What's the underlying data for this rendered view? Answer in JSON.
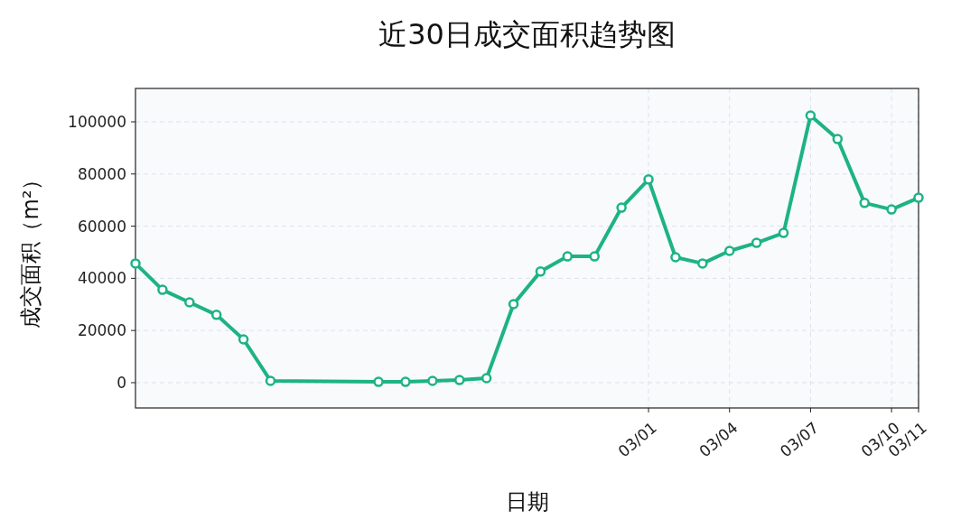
{
  "chart_data": {
    "type": "line",
    "title": "近30日成交面积趋势图",
    "xlabel": "日期",
    "ylabel": "成交面积（m²）",
    "x": [
      "--02-10",
      "--02-11",
      "--02-12",
      "--02-13",
      "--02-14",
      "--02-15",
      "--02-19",
      "--02-20",
      "--02-21",
      "--02-22",
      "--02-23",
      "--02-24",
      "--02-25",
      "--02-26",
      "--02-27",
      "--02-28",
      "--03-01",
      "--03-02",
      "--03-03",
      "--03-04",
      "--03-05",
      "--03-06",
      "--03-07",
      "--03-08",
      "--03-09",
      "--03-10",
      "--03-11"
    ],
    "series": [
      {
        "color": "#1db383",
        "values": [
          45700,
          35600,
          30800,
          26000,
          16600,
          700,
          300,
          300,
          700,
          1000,
          1700,
          30100,
          42600,
          48400,
          48400,
          67100,
          77900,
          48100,
          45700,
          50500,
          53600,
          57400,
          102400,
          93400,
          68900,
          66400,
          70900
        ]
      }
    ],
    "xlim": [
      "--02-10",
      "--03-11"
    ],
    "xticks": [
      {
        "value": "--03-01",
        "label": "03/01"
      },
      {
        "value": "--03-04",
        "label": "03/04"
      },
      {
        "value": "--03-07",
        "label": "03/07"
      },
      {
        "value": "--03-10",
        "label": "03/10"
      },
      {
        "value": "--03-11",
        "label": "03/11"
      }
    ],
    "ylim": [
      -9700,
      112800
    ],
    "yticks": [
      0,
      20000,
      40000,
      60000,
      80000,
      100000
    ],
    "grid": true,
    "marker": "circle",
    "line_style": "solid"
  }
}
